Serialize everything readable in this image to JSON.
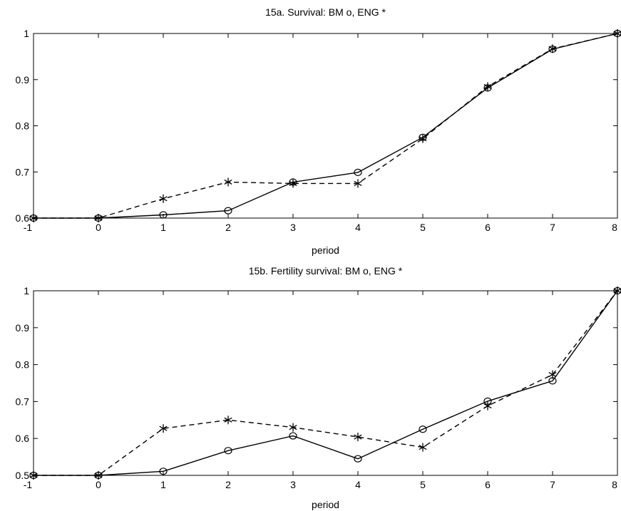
{
  "chart_data": [
    {
      "type": "line",
      "title": "15a. Survival: BM o, ENG *",
      "xlabel": "period",
      "ylabel": "",
      "xlim": [
        -1,
        8
      ],
      "ylim": [
        0.6,
        1.0
      ],
      "xticks": [
        "-1",
        "0",
        "1",
        "2",
        "3",
        "4",
        "5",
        "6",
        "7",
        "8"
      ],
      "yticks": [
        "0.6",
        "0.7",
        "0.8",
        "0.9",
        "1"
      ],
      "grid": false,
      "x": [
        -1,
        0,
        1,
        2,
        3,
        4,
        5,
        6,
        7,
        8
      ],
      "series": [
        {
          "marker": "circle",
          "linestyle": "solid",
          "values": [
            0.6,
            0.6,
            0.607,
            0.616,
            0.678,
            0.699,
            0.775,
            0.882,
            0.966,
            1.0
          ]
        },
        {
          "marker": "asterisk",
          "linestyle": "dashed",
          "values": [
            0.6,
            0.6,
            0.642,
            0.678,
            0.675,
            0.675,
            0.772,
            0.885,
            0.967,
            1.0
          ]
        }
      ]
    },
    {
      "type": "line",
      "title": "15b. Fertility survival: BM o, ENG *",
      "xlabel": "period",
      "ylabel": "",
      "xlim": [
        -1,
        8
      ],
      "ylim": [
        0.5,
        1.0
      ],
      "xticks": [
        "-1",
        "0",
        "1",
        "2",
        "3",
        "4",
        "5",
        "6",
        "7",
        "8"
      ],
      "yticks": [
        "0.5",
        "0.6",
        "0.7",
        "0.8",
        "0.9",
        "1"
      ],
      "grid": false,
      "x": [
        -1,
        0,
        1,
        2,
        3,
        4,
        5,
        6,
        7,
        8
      ],
      "series": [
        {
          "marker": "circle",
          "linestyle": "solid",
          "values": [
            0.5,
            0.5,
            0.511,
            0.567,
            0.607,
            0.545,
            0.625,
            0.701,
            0.756,
            1.0
          ]
        },
        {
          "marker": "asterisk",
          "linestyle": "dashed",
          "values": [
            0.5,
            0.5,
            0.627,
            0.65,
            0.63,
            0.604,
            0.576,
            0.688,
            0.773,
            1.0
          ]
        }
      ]
    }
  ]
}
